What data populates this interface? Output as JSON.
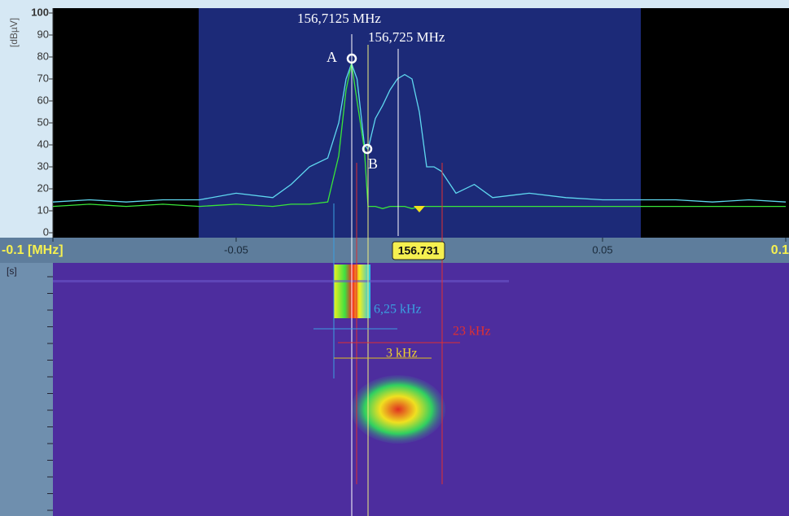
{
  "chart_data": {
    "type": "line",
    "y_label": "[dBµV]",
    "ylim": [
      0,
      100
    ],
    "yticks": [
      0,
      10,
      20,
      30,
      40,
      50,
      60,
      70,
      80,
      90,
      100
    ],
    "xlim": [
      -0.1,
      0.1
    ],
    "xticks": [
      {
        "value": -0.1,
        "label": "-0.1 [MHz]"
      },
      -0.05,
      0.05,
      {
        "value": 0.1,
        "label": "0.1"
      }
    ],
    "center_label": "156.731",
    "x": [
      -0.1,
      -0.09,
      -0.08,
      -0.07,
      -0.06,
      -0.05,
      -0.04,
      -0.035,
      -0.03,
      -0.025,
      -0.022,
      -0.02,
      -0.0185,
      -0.017,
      -0.015,
      -0.014,
      -0.012,
      -0.01,
      -0.008,
      -0.006,
      -0.004,
      -0.002,
      0,
      0.002,
      0.004,
      0.006,
      0.01,
      0.015,
      0.02,
      0.03,
      0.04,
      0.05,
      0.06,
      0.07,
      0.08,
      0.09,
      0.1
    ],
    "series": [
      {
        "color": "#5fd8f0",
        "values": [
          14,
          15,
          14,
          15,
          15,
          18,
          16,
          22,
          30,
          34,
          50,
          70,
          77,
          70,
          40,
          38,
          52,
          58,
          65,
          70,
          72,
          70,
          55,
          30,
          30,
          28,
          18,
          22,
          16,
          18,
          16,
          15,
          15,
          15,
          14,
          15,
          14
        ]
      },
      {
        "color": "#39e639",
        "values": [
          12,
          13,
          12,
          13,
          12,
          13,
          12,
          13,
          13,
          14,
          35,
          65,
          77,
          60,
          38,
          12,
          12,
          11,
          12,
          12,
          12,
          11,
          12,
          12,
          12,
          12,
          12,
          12,
          12,
          12,
          12,
          12,
          12,
          12,
          12,
          12,
          12
        ]
      }
    ],
    "annotations": {
      "freq_a": "156,7125 MHz",
      "freq_b": "156,725 MHz",
      "marker_a": "A",
      "marker_b": "B",
      "bw_cyan": "6,25 kHz",
      "bw_yellow": "3 kHz",
      "bw_red": "23 kHz"
    },
    "waterfall_y_label": "[s]"
  }
}
